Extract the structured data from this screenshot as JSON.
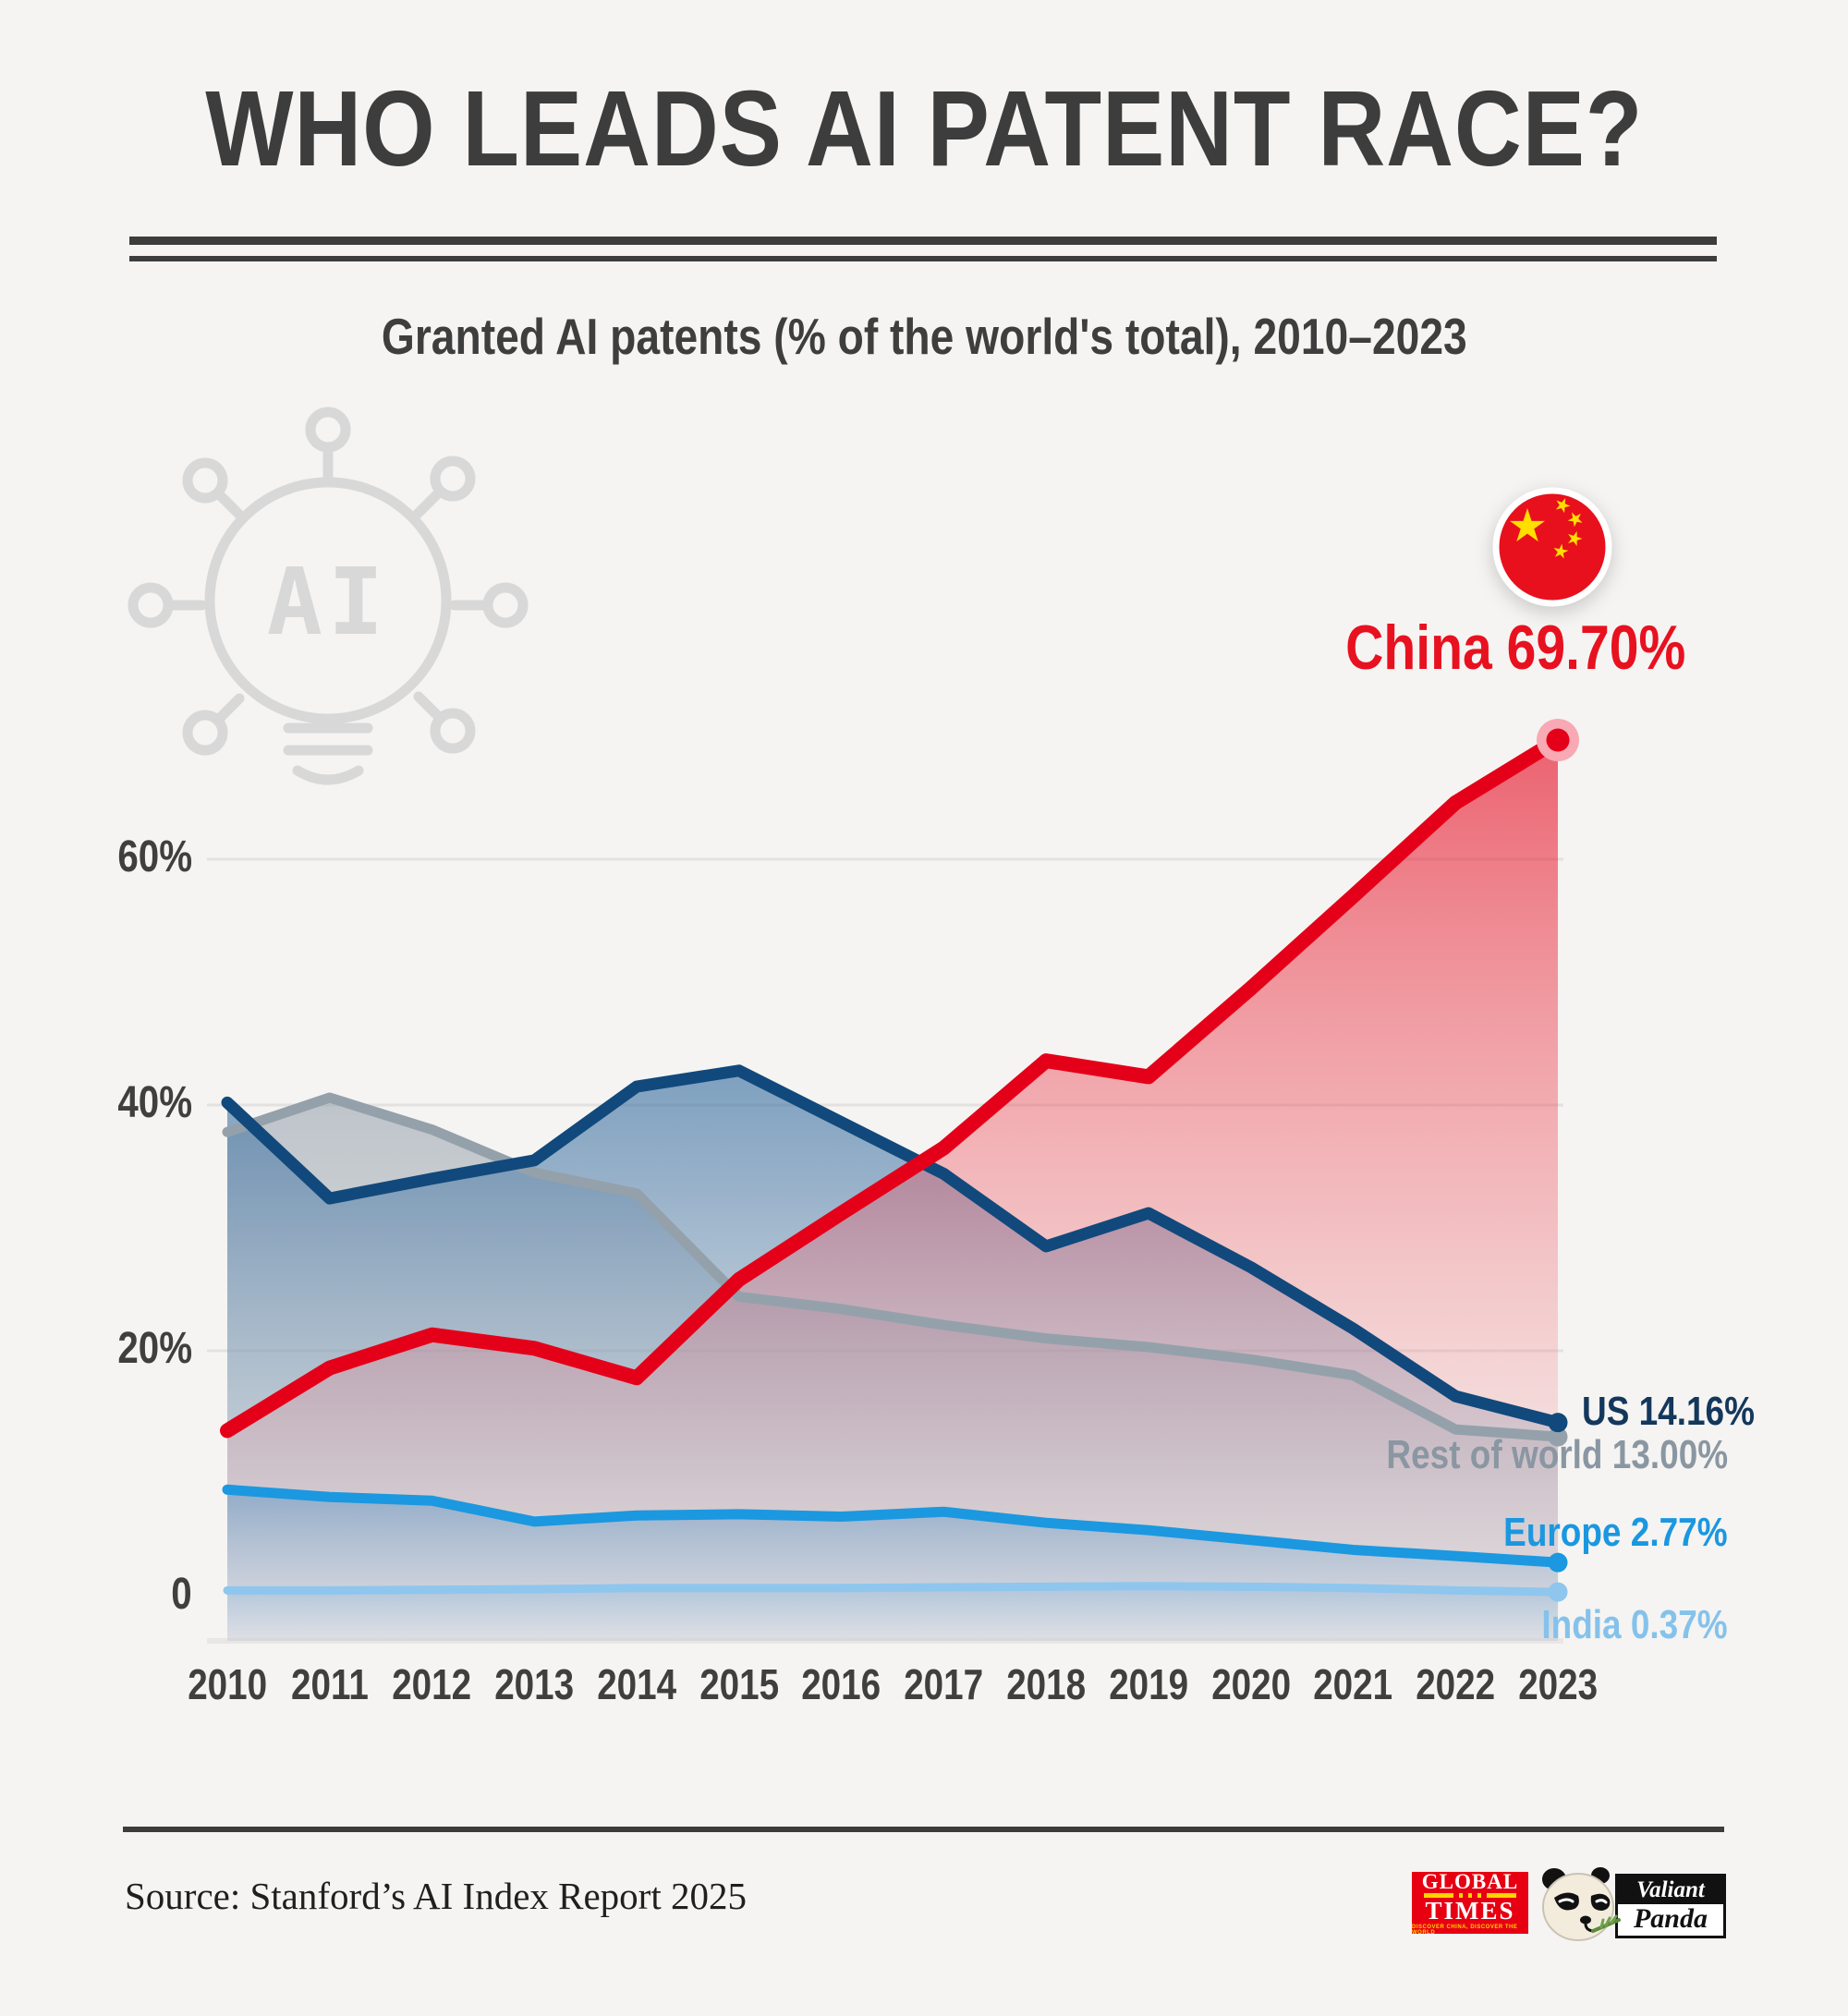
{
  "page": {
    "title": "WHO LEADS AI PATENT RACE?",
    "subtitle": "Granted AI patents (% of the world's total), 2010–2023",
    "background_color": "#f5f4f2",
    "title_color": "#3d3d3d"
  },
  "decor": {
    "ai_icon_text": "AI",
    "ai_icon_color": "#d8d8d8",
    "flag_red": "#e8101d",
    "flag_star_yellow": "#ffde00"
  },
  "chart_data": {
    "type": "area",
    "title": "Granted AI patents (% of the world's total), 2010–2023",
    "x": [
      "2010",
      "2011",
      "2012",
      "2013",
      "2014",
      "2015",
      "2016",
      "2017",
      "2018",
      "2019",
      "2020",
      "2021",
      "2022",
      "2023"
    ],
    "y_axis": {
      "ticks": [
        "60%",
        "40%",
        "20%",
        "0"
      ],
      "tick_values": [
        60,
        40,
        20,
        0
      ],
      "unit": "%",
      "range": [
        0,
        75
      ],
      "grid": true
    },
    "legend_position": "line-end labels, right side",
    "series": [
      {
        "name": "China",
        "color": "#e50019",
        "end_label": "China 69.70%",
        "end_value": 69.7,
        "values": [
          13.5,
          18.6,
          21.3,
          20.2,
          17.8,
          25.8,
          31.2,
          36.5,
          43.6,
          42.3,
          49.5,
          57.0,
          64.6,
          69.7
        ]
      },
      {
        "name": "US",
        "color": "#11497c",
        "end_label": "US 14.16%",
        "end_value": 14.16,
        "values": [
          40.2,
          32.4,
          34.0,
          35.5,
          41.5,
          42.8,
          38.6,
          34.4,
          28.5,
          31.2,
          26.8,
          21.8,
          16.3,
          14.16
        ]
      },
      {
        "name": "Rest of world",
        "color": "#94a1ab",
        "end_label": "Rest of world 13.00%",
        "end_value": 13.0,
        "values": [
          37.8,
          40.6,
          38.0,
          34.5,
          32.8,
          24.4,
          23.4,
          22.1,
          21.0,
          20.3,
          19.3,
          18.0,
          13.6,
          13.0
        ]
      },
      {
        "name": "Europe",
        "color": "#1b98e0",
        "end_label": "Europe 2.77%",
        "end_value": 2.77,
        "values": [
          8.7,
          8.1,
          7.8,
          6.1,
          6.6,
          6.7,
          6.5,
          6.9,
          6.0,
          5.4,
          4.6,
          3.8,
          3.3,
          2.77
        ]
      },
      {
        "name": "India",
        "color": "#8ec6ee",
        "end_label": "India 0.37%",
        "end_value": 0.37,
        "values": [
          0.5,
          0.5,
          0.55,
          0.6,
          0.7,
          0.7,
          0.7,
          0.75,
          0.8,
          0.85,
          0.8,
          0.7,
          0.5,
          0.37
        ]
      }
    ]
  },
  "footer": {
    "source": "Source: Stanford’s AI Index Report 2025",
    "logos": {
      "global_times": {
        "line1": "GLOBAL",
        "line2": "TIMES",
        "tagline": "DISCOVER CHINA, DISCOVER THE WORLD",
        "box_color": "#e60012",
        "band_color": "#ffd400"
      },
      "valiant_panda": {
        "line1": "Valiant",
        "line2": "Panda"
      }
    }
  }
}
